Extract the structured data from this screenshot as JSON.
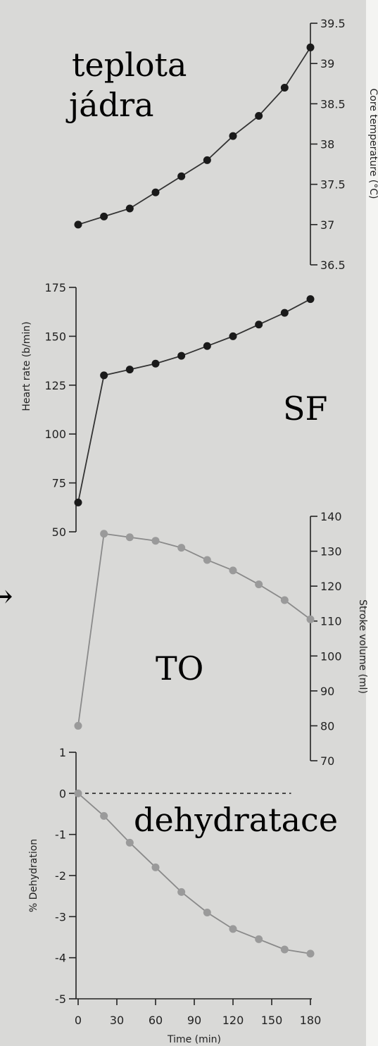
{
  "annotations": {
    "core_temp_line1": "teplota",
    "core_temp_line2": "jádra",
    "heart_rate": "SF",
    "stroke_volume": "TO",
    "dehydration": "dehydratace",
    "arrow": "→"
  },
  "chart_data": [
    {
      "type": "line",
      "ylabel": "Core temperature (°C)",
      "ylim": [
        36.5,
        39.5
      ],
      "yticks": [
        "39.5",
        "39",
        "38.5",
        "38",
        "37.5",
        "37",
        "36.5"
      ],
      "axis_side": "right",
      "x": [
        0,
        20,
        40,
        60,
        80,
        100,
        120,
        140,
        160,
        180
      ],
      "series": [
        {
          "values": [
            37.0,
            37.1,
            37.2,
            37.4,
            37.6,
            37.8,
            38.1,
            38.35,
            38.7,
            39.2
          ]
        }
      ],
      "color": "#1a1a1a"
    },
    {
      "type": "line",
      "ylabel": "Heart rate (b/min)",
      "ylim": [
        50,
        175
      ],
      "yticks": [
        "175",
        "150",
        "125",
        "100",
        "75",
        "50"
      ],
      "axis_side": "left",
      "x": [
        0,
        20,
        40,
        60,
        80,
        100,
        120,
        140,
        160,
        180
      ],
      "series": [
        {
          "values": [
            65,
            130,
            133,
            136,
            140,
            145,
            150,
            156,
            162,
            169
          ]
        }
      ],
      "color": "#1a1a1a"
    },
    {
      "type": "line",
      "ylabel": "Stroke volume (ml)",
      "ylim": [
        70,
        140
      ],
      "yticks": [
        "140",
        "130",
        "120",
        "110",
        "100",
        "90",
        "80",
        "70"
      ],
      "axis_side": "right",
      "x": [
        0,
        20,
        40,
        60,
        80,
        100,
        120,
        140,
        160,
        180
      ],
      "series": [
        {
          "values": [
            80,
            135,
            134,
            133,
            131,
            127.5,
            124.5,
            120.5,
            116,
            110.5
          ]
        }
      ],
      "color": "#9a9a9a"
    },
    {
      "type": "line",
      "xlabel": "Time (min)",
      "ylabel": "% Dehydration",
      "xlim": [
        0,
        180
      ],
      "xticks": [
        "0",
        "30",
        "60",
        "90",
        "120",
        "150",
        "180"
      ],
      "ylim": [
        -5,
        1
      ],
      "yticks": [
        "1",
        "0",
        "-1",
        "-2",
        "-3",
        "-4",
        "-5"
      ],
      "axis_side": "left",
      "reference_line": 0,
      "x": [
        0,
        20,
        40,
        60,
        80,
        100,
        120,
        140,
        160,
        180
      ],
      "series": [
        {
          "values": [
            0,
            -0.55,
            -1.2,
            -1.8,
            -2.4,
            -2.9,
            -3.3,
            -3.55,
            -3.8,
            -3.9
          ]
        }
      ],
      "color": "#9a9a9a"
    }
  ]
}
